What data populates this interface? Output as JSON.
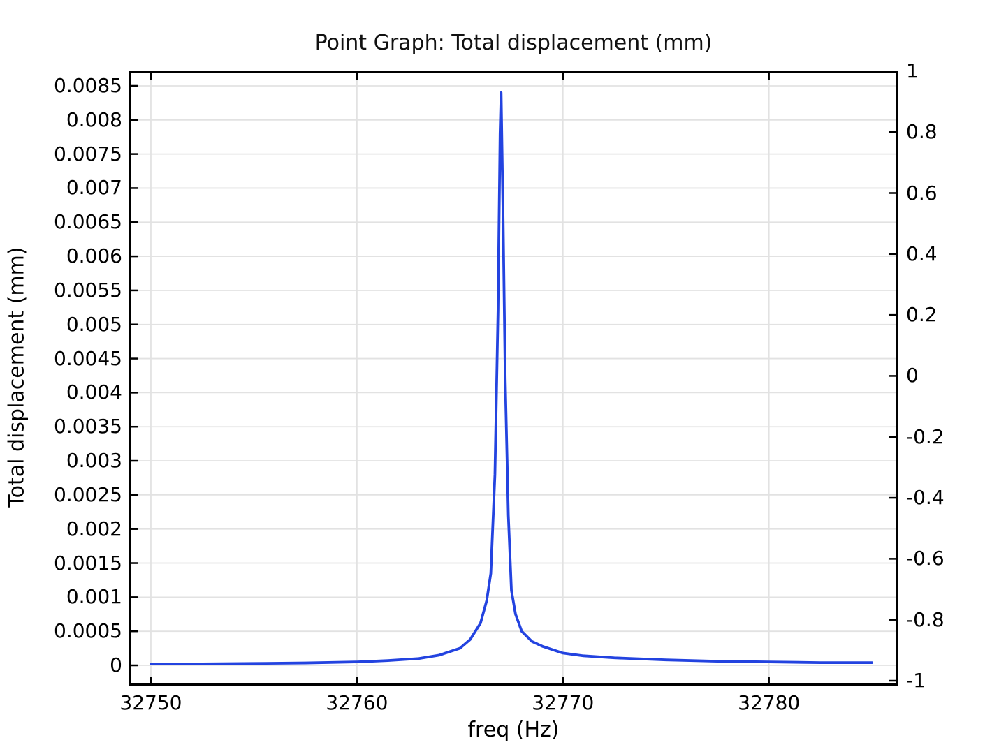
{
  "title": "Point Graph: Total displacement (mm)",
  "x_axis": {
    "label": "freq (Hz)",
    "ticks": [
      {
        "value": 32750,
        "label": "32750"
      },
      {
        "value": 32760,
        "label": "32760"
      },
      {
        "value": 32770,
        "label": "32770"
      },
      {
        "value": 32780,
        "label": "32780"
      }
    ]
  },
  "y_axis_left": {
    "label": "Total displacement (mm)",
    "ticks": [
      {
        "value": 0.0085,
        "label": "0.0085"
      },
      {
        "value": 0.008,
        "label": "0.008"
      },
      {
        "value": 0.0075,
        "label": "0.0075"
      },
      {
        "value": 0.007,
        "label": "0.007"
      },
      {
        "value": 0.0065,
        "label": "0.0065"
      },
      {
        "value": 0.006,
        "label": "0.006"
      },
      {
        "value": 0.0055,
        "label": "0.0055"
      },
      {
        "value": 0.005,
        "label": "0.005"
      },
      {
        "value": 0.0045,
        "label": "0.0045"
      },
      {
        "value": 0.004,
        "label": "0.004"
      },
      {
        "value": 0.0035,
        "label": "0.0035"
      },
      {
        "value": 0.003,
        "label": "0.003"
      },
      {
        "value": 0.0025,
        "label": "0.0025"
      },
      {
        "value": 0.002,
        "label": "0.002"
      },
      {
        "value": 0.0015,
        "label": "0.0015"
      },
      {
        "value": 0.001,
        "label": "0.001"
      },
      {
        "value": 0.0005,
        "label": "0.0005"
      },
      {
        "value": 0,
        "label": "0"
      }
    ]
  },
  "y_axis_right": {
    "ticks": [
      {
        "value": 1,
        "label": "1"
      },
      {
        "value": 0.8,
        "label": "0.8"
      },
      {
        "value": 0.6,
        "label": "0.6"
      },
      {
        "value": 0.4,
        "label": "0.4"
      },
      {
        "value": 0.2,
        "label": "0.2"
      },
      {
        "value": 0,
        "label": "0"
      },
      {
        "value": -0.2,
        "label": "-0.2"
      },
      {
        "value": -0.4,
        "label": "-0.4"
      },
      {
        "value": -0.6,
        "label": "-0.6"
      },
      {
        "value": -0.8,
        "label": "-0.8"
      },
      {
        "value": -1,
        "label": "-1"
      }
    ]
  },
  "chart_data": {
    "type": "line",
    "title": "Point Graph: Total displacement (mm)",
    "xlabel": "freq (Hz)",
    "ylabel_left": "Total displacement (mm)",
    "ylabel_right": "",
    "grid": true,
    "legend": "none",
    "line_color": "#2343e0",
    "grid_color": "#e2e2e2",
    "axis_color": "#000000",
    "x_range": [
      32748.95,
      32786.25
    ],
    "y_left_range": [
      -0.000297,
      0.008725
    ],
    "y_right_range": [
      -1.016,
      1.002
    ],
    "peak": {
      "freq_hz": 32767,
      "displacement_mm": 0.0084
    },
    "points": [
      [
        32750.0,
        2e-05
      ],
      [
        32752.5,
        2.2e-05
      ],
      [
        32755.0,
        2.8e-05
      ],
      [
        32757.5,
        3.5e-05
      ],
      [
        32760.0,
        5e-05
      ],
      [
        32761.5,
        7e-05
      ],
      [
        32763.0,
        0.0001
      ],
      [
        32764.0,
        0.00015
      ],
      [
        32765.0,
        0.00025
      ],
      [
        32765.5,
        0.00038
      ],
      [
        32766.0,
        0.00062
      ],
      [
        32766.3,
        0.00095
      ],
      [
        32766.5,
        0.00135
      ],
      [
        32766.7,
        0.0028
      ],
      [
        32766.85,
        0.0052
      ],
      [
        32766.95,
        0.0078
      ],
      [
        32767.0,
        0.0084
      ],
      [
        32767.1,
        0.0065
      ],
      [
        32767.2,
        0.0042
      ],
      [
        32767.35,
        0.0022
      ],
      [
        32767.5,
        0.0011
      ],
      [
        32767.7,
        0.00075
      ],
      [
        32768.0,
        0.0005
      ],
      [
        32768.5,
        0.00035
      ],
      [
        32769.0,
        0.00028
      ],
      [
        32770.0,
        0.00018
      ],
      [
        32771.0,
        0.00014
      ],
      [
        32772.5,
        0.00011
      ],
      [
        32775.0,
        8e-05
      ],
      [
        32777.5,
        6e-05
      ],
      [
        32780.0,
        5e-05
      ],
      [
        32782.5,
        4e-05
      ],
      [
        32785.0,
        4e-05
      ]
    ]
  }
}
